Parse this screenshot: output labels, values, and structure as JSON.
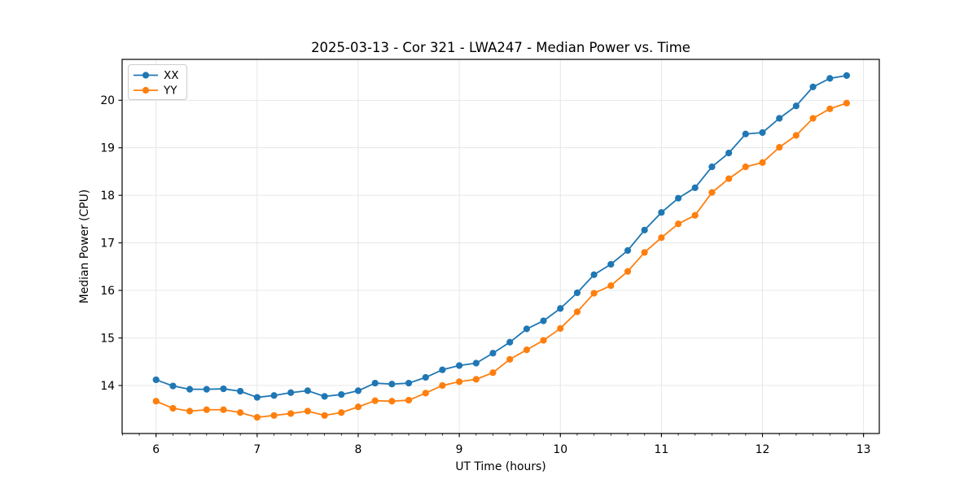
{
  "figure": {
    "background": "#ffffff",
    "plot_background": "#ffffff",
    "spine_color": "#000000",
    "grid_color": "#e4e4e4",
    "tick_color": "#000000"
  },
  "chart_data": {
    "type": "line",
    "title": "2025-03-13 - Cor 321 - LWA247 - Median Power vs. Time",
    "xlabel": "UT Time (hours)",
    "ylabel": "Median Power (CPU)",
    "xlim": [
      5.664,
      13.156
    ],
    "ylim": [
      12.99,
      20.86
    ],
    "x_ticks": [
      6,
      7,
      8,
      9,
      10,
      11,
      12,
      13
    ],
    "y_ticks": [
      14,
      15,
      16,
      17,
      18,
      19,
      20
    ],
    "x_minor_tick_step": 0.16667,
    "grid": true,
    "legend_position": "upper left",
    "marker": "circle",
    "x": [
      6.0,
      6.167,
      6.333,
      6.5,
      6.667,
      6.833,
      7.0,
      7.167,
      7.333,
      7.5,
      7.667,
      7.833,
      8.0,
      8.167,
      8.333,
      8.5,
      8.667,
      8.833,
      9.0,
      9.167,
      9.333,
      9.5,
      9.667,
      9.833,
      10.0,
      10.167,
      10.333,
      10.5,
      10.667,
      10.833,
      11.0,
      11.167,
      11.333,
      11.5,
      11.667,
      11.833,
      12.0,
      12.167,
      12.333,
      12.5,
      12.667,
      12.833
    ],
    "series": [
      {
        "name": "XX",
        "color": "#1f77b4",
        "values": [
          14.12,
          13.99,
          13.92,
          13.92,
          13.93,
          13.88,
          13.75,
          13.79,
          13.85,
          13.89,
          13.77,
          13.81,
          13.89,
          14.05,
          14.03,
          14.05,
          14.17,
          14.33,
          14.42,
          14.47,
          14.68,
          14.91,
          15.19,
          15.36,
          15.62,
          15.95,
          16.33,
          16.55,
          16.84,
          17.27,
          17.64,
          17.94,
          18.16,
          18.6,
          18.89,
          19.29,
          19.32,
          19.62,
          19.88,
          20.28,
          20.46,
          20.52
        ]
      },
      {
        "name": "YY",
        "color": "#ff7f0e",
        "values": [
          13.67,
          13.52,
          13.46,
          13.49,
          13.49,
          13.43,
          13.33,
          13.37,
          13.41,
          13.46,
          13.37,
          13.43,
          13.55,
          13.68,
          13.67,
          13.69,
          13.84,
          14.0,
          14.08,
          14.13,
          14.27,
          14.55,
          14.75,
          14.95,
          15.2,
          15.55,
          15.94,
          16.1,
          16.4,
          16.8,
          17.11,
          17.4,
          17.58,
          18.06,
          18.35,
          18.6,
          18.69,
          19.01,
          19.26,
          19.62,
          19.82,
          19.94
        ]
      }
    ]
  }
}
